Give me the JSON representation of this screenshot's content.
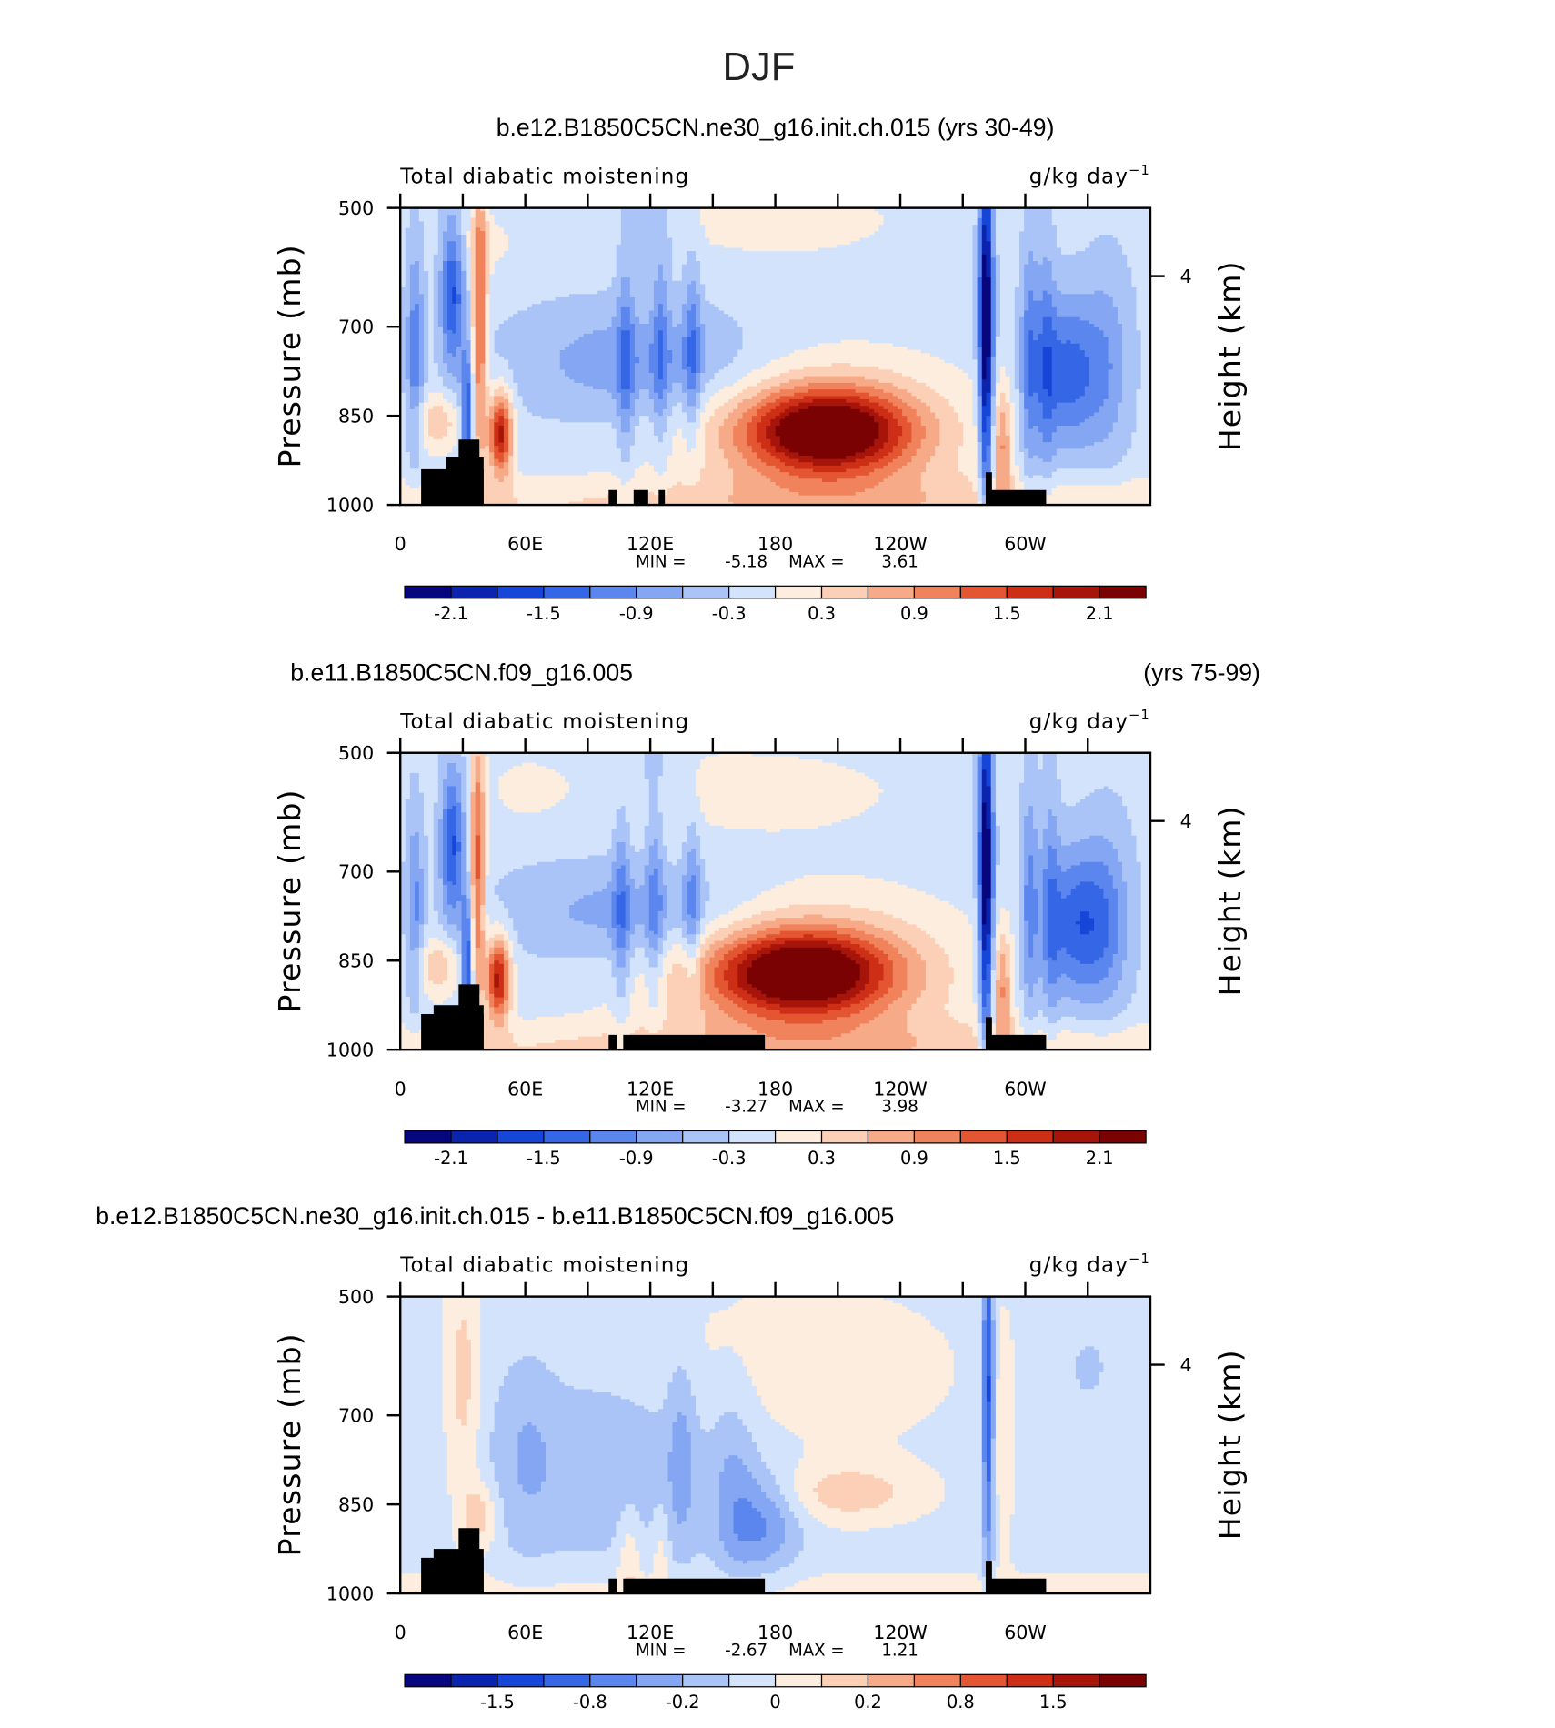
{
  "title": "DJF",
  "chart_data": [
    {
      "type": "contour",
      "title": "b.e12.B1850C5CN.ne30_g16.init.ch.015 (yrs 30-49)",
      "left_string": "Total diabatic moistening",
      "right_string": "g/kg day",
      "right_string_exponent": "−1",
      "ylabel": "Pressure (mb)",
      "y2label": "Height (km)",
      "xlim": [
        0,
        360
      ],
      "xticks": [
        0,
        {
          "value": 60,
          "label": "60E"
        },
        {
          "value": 120,
          "label": "120E"
        },
        180,
        {
          "value": 240,
          "label": "120W"
        },
        {
          "value": 300,
          "label": "60W"
        }
      ],
      "xminor_ticks": [
        30,
        90,
        150,
        210,
        270,
        330
      ],
      "ylim": [
        1000,
        500
      ],
      "yticks": [
        500,
        700,
        850,
        1000
      ],
      "y2lim": [
        0,
        5.7
      ],
      "y2ticks": [
        4
      ],
      "min_label": "MIN =",
      "min": -5.18,
      "max_label": "MAX =",
      "max": 3.61,
      "colorbar": {
        "colors": [
          "#06067f",
          "#0a24b0",
          "#1646d8",
          "#3566e6",
          "#5a86ee",
          "#84a6f3",
          "#aac4f7",
          "#d2e3fb",
          "#fdedde",
          "#fcd0b6",
          "#f7aa88",
          "#f0825c",
          "#e45532",
          "#cd2e16",
          "#a6140a",
          "#7a0202"
        ],
        "ticks": [
          -2.1,
          -1.5,
          -0.9,
          -0.3,
          0.3,
          0.9,
          1.5,
          2.1
        ]
      }
    },
    {
      "type": "contour",
      "title": "b.e11.B1850C5CN.f09_g16.005",
      "title_right": "(yrs 75-99)",
      "left_string": "Total diabatic moistening",
      "right_string": "g/kg day",
      "right_string_exponent": "−1",
      "ylabel": "Pressure (mb)",
      "y2label": "Height (km)",
      "xlim": [
        0,
        360
      ],
      "xticks": [
        0,
        {
          "value": 60,
          "label": "60E"
        },
        {
          "value": 120,
          "label": "120E"
        },
        180,
        {
          "value": 240,
          "label": "120W"
        },
        {
          "value": 300,
          "label": "60W"
        }
      ],
      "xminor_ticks": [
        30,
        90,
        150,
        210,
        270,
        330
      ],
      "ylim": [
        1000,
        500
      ],
      "yticks": [
        500,
        700,
        850,
        1000
      ],
      "y2lim": [
        0,
        5.7
      ],
      "y2ticks": [
        4
      ],
      "min_label": "MIN =",
      "min": -3.27,
      "max_label": "MAX =",
      "max": 3.98,
      "colorbar": {
        "colors": [
          "#06067f",
          "#0a24b0",
          "#1646d8",
          "#3566e6",
          "#5a86ee",
          "#84a6f3",
          "#aac4f7",
          "#d2e3fb",
          "#fdedde",
          "#fcd0b6",
          "#f7aa88",
          "#f0825c",
          "#e45532",
          "#cd2e16",
          "#a6140a",
          "#7a0202"
        ],
        "ticks": [
          -2.1,
          -1.5,
          -0.9,
          -0.3,
          0.3,
          0.9,
          1.5,
          2.1
        ]
      }
    },
    {
      "type": "contour",
      "title": "b.e12.B1850C5CN.ne30_g16.init.ch.015 - b.e11.B1850C5CN.f09_g16.005",
      "left_string": "Total diabatic moistening",
      "right_string": "g/kg day",
      "right_string_exponent": "−1",
      "ylabel": "Pressure (mb)",
      "y2label": "Height (km)",
      "xlim": [
        0,
        360
      ],
      "xticks": [
        0,
        {
          "value": 60,
          "label": "60E"
        },
        {
          "value": 120,
          "label": "120E"
        },
        180,
        {
          "value": 240,
          "label": "120W"
        },
        {
          "value": 300,
          "label": "60W"
        }
      ],
      "xminor_ticks": [
        30,
        90,
        150,
        210,
        270,
        330
      ],
      "ylim": [
        1000,
        500
      ],
      "yticks": [
        500,
        700,
        850,
        1000
      ],
      "y2lim": [
        0,
        5.7
      ],
      "y2ticks": [
        4
      ],
      "min_label": "MIN =",
      "min": -2.67,
      "max_label": "MAX =",
      "max": 1.21,
      "colorbar": {
        "colors": [
          "#06067f",
          "#0a24b0",
          "#1646d8",
          "#3566e6",
          "#5a86ee",
          "#84a6f3",
          "#aac4f7",
          "#d2e3fb",
          "#fdedde",
          "#fcd0b6",
          "#f7aa88",
          "#f0825c",
          "#e45532",
          "#cd2e16",
          "#a6140a",
          "#7a0202"
        ],
        "ticks": [
          -1.5,
          -0.8,
          -0.2,
          0,
          0.2,
          0.8,
          1.5
        ]
      }
    }
  ]
}
